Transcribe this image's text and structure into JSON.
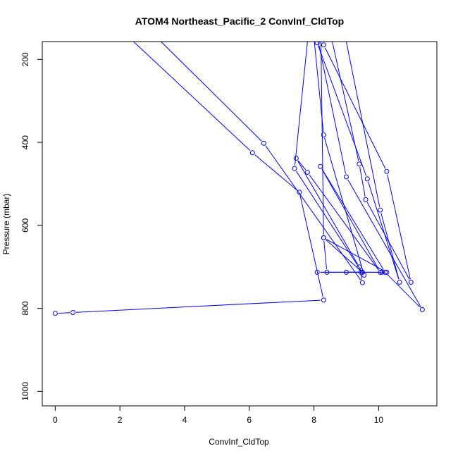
{
  "chart_data": {
    "type": "line",
    "title": "ATOM4 Northeast_Pacific_2 ConvInf_CldTop",
    "xlabel": "ConvInf_CldTop",
    "ylabel": "Pressure (mbar)",
    "xlim": [
      -0.4,
      11.8
    ],
    "ylim": [
      1035,
      157
    ],
    "y_inverted": true,
    "x_ticks": [
      0,
      2,
      4,
      6,
      8,
      10
    ],
    "y_ticks": [
      200,
      400,
      600,
      800,
      1000
    ],
    "grid": false,
    "legend": "none",
    "series_color": "#0000ff",
    "series": [
      {
        "x": [
          0.0,
          0.55,
          8.3,
          7.55,
          6.1,
          1.5,
          2.4,
          6.45,
          9.5,
          9.4,
          7.45,
          7.8,
          10.05,
          8.2,
          10.2,
          11.35,
          9.0,
          7.9,
          8.3,
          9.55,
          7.4,
          7.9,
          8.3,
          10.25,
          11.0,
          9.6,
          9.4,
          8.35,
          8.1,
          9.65,
          10.65,
          10.05,
          8.8,
          8.1,
          8.2,
          8.3,
          10.25,
          9.5,
          8.4,
          8.3,
          9.5,
          8.1,
          9.45,
          9.0,
          10.1
        ],
        "y": [
          812,
          810,
          780,
          520,
          425,
          90,
          90,
          402,
          738,
          700,
          438,
          472,
          713,
          458,
          713,
          803,
          483,
          70,
          382,
          720,
          463,
          80,
          165,
          470,
          737,
          538,
          452,
          80,
          160,
          488,
          737,
          563,
          80,
          70,
          70,
          630,
          713,
          713,
          713,
          630,
          713,
          713,
          713,
          713,
          713
        ]
      }
    ]
  }
}
